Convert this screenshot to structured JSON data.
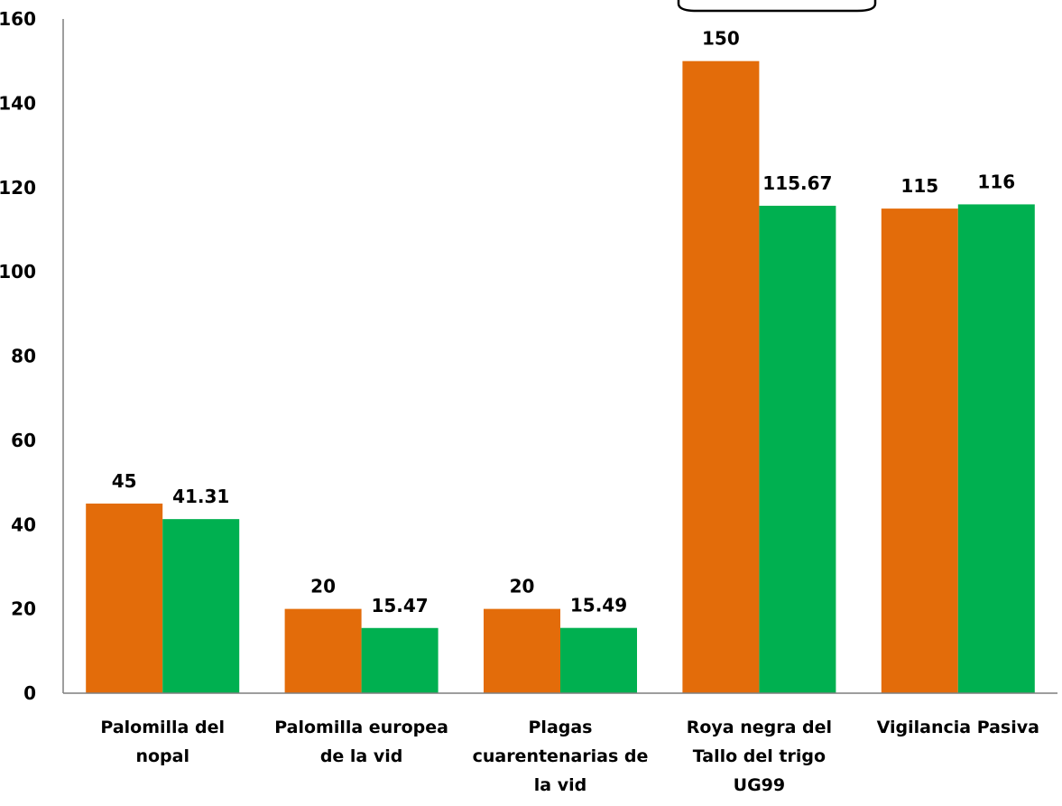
{
  "chart_data": {
    "type": "bar",
    "categories": [
      [
        "Palomilla del",
        "nopal"
      ],
      [
        "Palomilla europea",
        "de la vid"
      ],
      [
        "Plagas",
        "cuarentenarias de",
        "la vid"
      ],
      [
        "Roya negra del",
        "Tallo del trigo",
        "UG99"
      ],
      [
        "Vigilancia Pasiva"
      ]
    ],
    "series": [
      {
        "values": [
          45,
          20,
          20,
          150,
          115
        ],
        "color": "#E36C0A",
        "labels": [
          "45",
          "20",
          "20",
          "150",
          "115"
        ]
      },
      {
        "values": [
          41.31,
          15.47,
          15.49,
          115.67,
          116
        ],
        "color": "#00B050",
        "labels": [
          "41.31",
          "15.47",
          "15.49",
          "115.67",
          "116"
        ]
      }
    ],
    "ylim": [
      0,
      160
    ],
    "yticks": [
      0,
      20,
      40,
      60,
      80,
      100,
      120,
      140,
      160
    ],
    "ytick_labels": [
      "0",
      "20",
      "40",
      "60",
      "80",
      "100",
      "120",
      "140",
      "160"
    ],
    "grid": false,
    "legend": "none",
    "title": "",
    "xlabel": "",
    "ylabel": ""
  }
}
